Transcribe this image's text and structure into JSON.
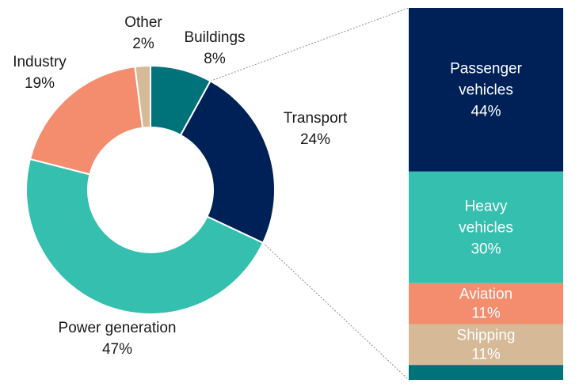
{
  "chart_data": [
    {
      "type": "pie",
      "variant": "donut",
      "slices": [
        {
          "label": "Buildings",
          "value": 8,
          "value_label": "8%",
          "color": "#00727A"
        },
        {
          "label": "Transport",
          "value": 24,
          "value_label": "24%",
          "color": "#002157"
        },
        {
          "label": "Power generation",
          "value": 47,
          "value_label": "47%",
          "color": "#34BFAE"
        },
        {
          "label": "Industry",
          "value": 19,
          "value_label": "19%",
          "color": "#F48C6E"
        },
        {
          "label": "Other",
          "value": 2,
          "value_label": "2%",
          "color": "#D6B996"
        }
      ]
    },
    {
      "type": "bar",
      "variant": "stacked-100-breakdown",
      "breakdown_of": "Transport",
      "segments": [
        {
          "label": "Passenger vehicles",
          "value": 44,
          "value_label": "44%",
          "color": "#002157",
          "text_color": "#ffffff"
        },
        {
          "label": "Heavy vehicles",
          "value": 30,
          "value_label": "30%",
          "color": "#34BFAE",
          "text_color": "#ffffff"
        },
        {
          "label": "Aviation",
          "value": 11,
          "value_label": "11%",
          "color": "#F48C6E",
          "text_color": "#ffffff"
        },
        {
          "label": "Shipping",
          "value": 11,
          "value_label": "11%",
          "color": "#D6B996",
          "text_color": "#ffffff"
        },
        {
          "label": "",
          "value": 4,
          "value_label": "",
          "color": "#00727A",
          "text_color": "#ffffff"
        }
      ]
    }
  ]
}
